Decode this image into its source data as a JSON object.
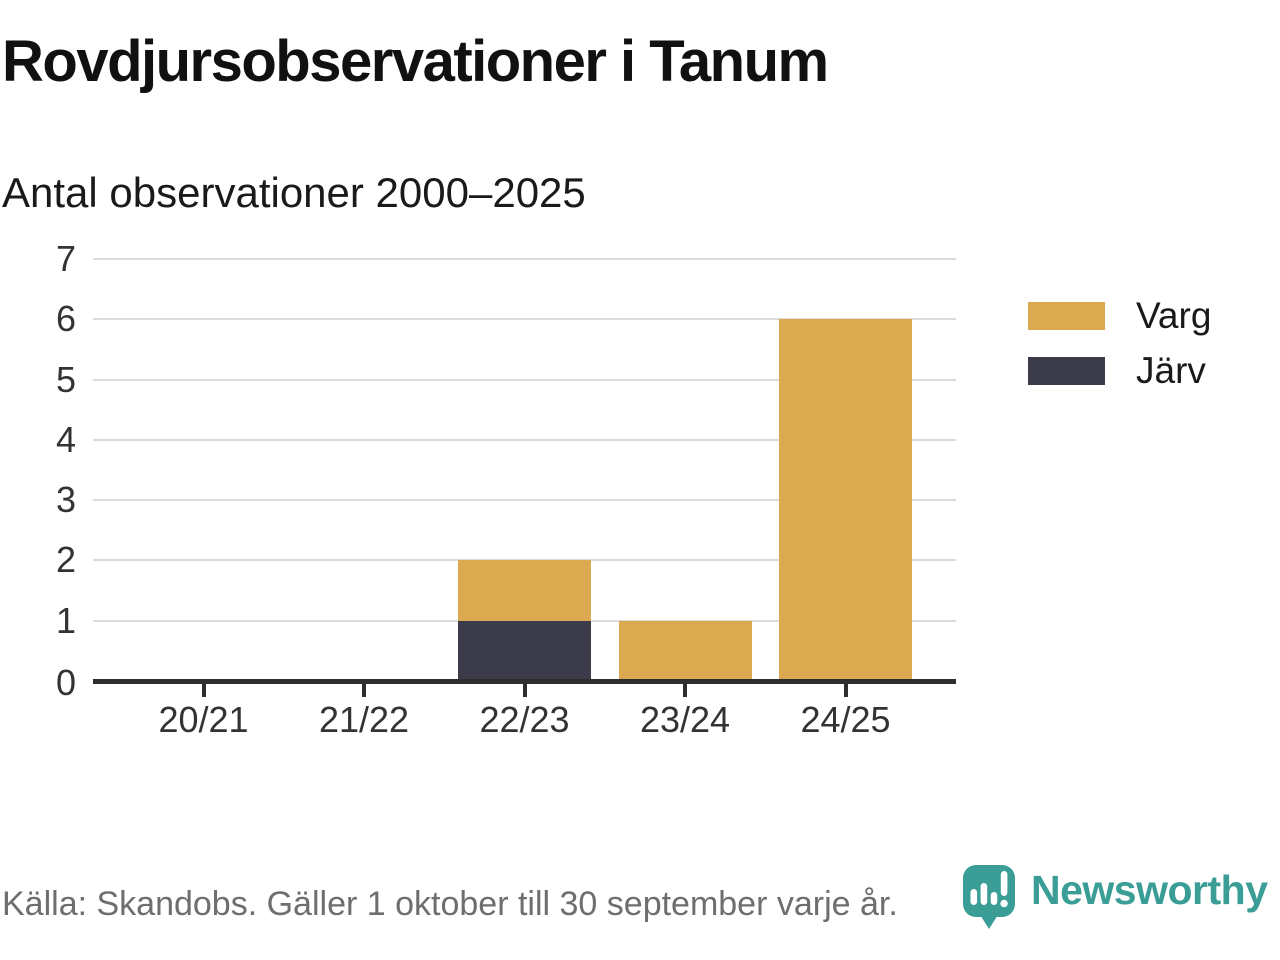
{
  "header": {
    "title": "Rovdjursobservationer i Tanum",
    "subtitle": "Antal observationer 2000–2025"
  },
  "chart_data": {
    "type": "bar",
    "stacked": true,
    "title": "Rovdjursobservationer i Tanum",
    "subtitle": "Antal observationer 2000–2025",
    "categories": [
      "20/21",
      "21/22",
      "22/23",
      "23/24",
      "24/25"
    ],
    "series": [
      {
        "name": "Varg",
        "color": "#DAA950",
        "values": [
          0,
          0,
          1,
          1,
          6
        ]
      },
      {
        "name": "Järv",
        "color": "#3C3B49",
        "values": [
          0,
          0,
          1,
          0,
          0
        ]
      }
    ],
    "stack_bottom_to_top": [
      "Järv",
      "Varg"
    ],
    "totals": [
      0,
      0,
      2,
      1,
      6
    ],
    "xlabel": "",
    "ylabel": "",
    "ylim": [
      0,
      7
    ],
    "yticks": [
      0,
      1,
      2,
      3,
      4,
      5,
      6,
      7
    ],
    "grid": "horizontal",
    "legend_position": "right"
  },
  "colors": {
    "grid": "#dbdbdb",
    "axis": "#2e2e2e",
    "tick_label": "#333333",
    "footer_text": "#6e6e6e",
    "brand_teal": "#3A9D96"
  },
  "footer": {
    "source": "Källa: Skandobs. Gäller 1 oktober till 30 september varje år.",
    "brand_name": "Newsworthy"
  }
}
